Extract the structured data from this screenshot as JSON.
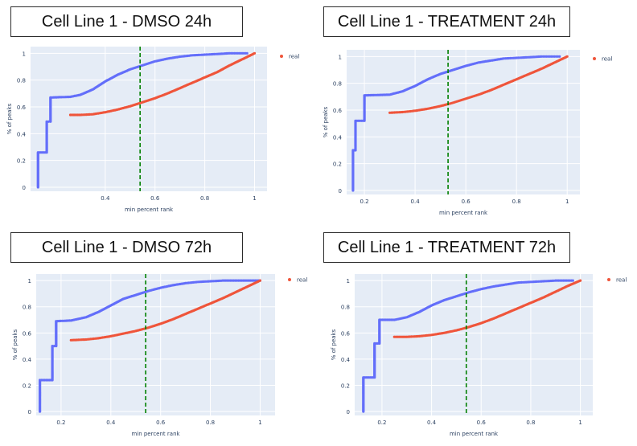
{
  "colors": {
    "background": "#e5ecf6",
    "grid": "#ffffff",
    "series_real": "#ef553b",
    "series_other": "#636efa",
    "vline": "#008000",
    "tick_text": "#2a3f5f"
  },
  "chart_data": [
    {
      "panel_title": "Cell Line 1 - DMSO 24h",
      "type": "scatter",
      "xlabel": "min percent rank",
      "ylabel": "% of peaks",
      "xlim": [
        0.1,
        1.05
      ],
      "ylim": [
        -0.03,
        1.05
      ],
      "xticks": [
        0.4,
        0.6,
        0.8,
        1
      ],
      "xtick_labels": [
        "0.4",
        "0.6",
        "0.8",
        "1"
      ],
      "yticks": [
        0,
        0.2,
        0.4,
        0.6,
        0.8,
        1
      ],
      "ytick_labels": [
        "0",
        "0.2",
        "0.4",
        "0.6",
        "0.8",
        "1"
      ],
      "grid": true,
      "legend_position": "top-right",
      "vline_x": 0.54,
      "series": [
        {
          "name": "real",
          "color": "#ef553b",
          "x": [
            0.26,
            0.3,
            0.35,
            0.4,
            0.45,
            0.5,
            0.55,
            0.6,
            0.65,
            0.7,
            0.75,
            0.8,
            0.85,
            0.9,
            0.95,
            1.0
          ],
          "y": [
            0.54,
            0.54,
            0.545,
            0.56,
            0.58,
            0.605,
            0.635,
            0.665,
            0.7,
            0.74,
            0.78,
            0.82,
            0.86,
            0.91,
            0.955,
            1.0
          ]
        },
        {
          "name": "",
          "color": "#636efa",
          "x": [
            0.13,
            0.13,
            0.165,
            0.165,
            0.18,
            0.18,
            0.26,
            0.3,
            0.35,
            0.4,
            0.45,
            0.5,
            0.55,
            0.6,
            0.65,
            0.7,
            0.75,
            0.8,
            0.85,
            0.9,
            0.95,
            0.97
          ],
          "y": [
            0.0,
            0.26,
            0.26,
            0.49,
            0.49,
            0.67,
            0.675,
            0.69,
            0.73,
            0.79,
            0.84,
            0.88,
            0.91,
            0.94,
            0.96,
            0.975,
            0.985,
            0.99,
            0.995,
            1.0,
            1.0,
            1.0
          ]
        }
      ]
    },
    {
      "panel_title": "Cell Line 1 - TREATMENT 24h",
      "type": "scatter",
      "xlabel": "min percent rank",
      "ylabel": "% of peaks",
      "xlim": [
        0.13,
        1.05
      ],
      "ylim": [
        -0.03,
        1.05
      ],
      "xticks": [
        0.2,
        0.4,
        0.6,
        0.8,
        1
      ],
      "xtick_labels": [
        "0.2",
        "0.4",
        "0.6",
        "0.8",
        "1"
      ],
      "yticks": [
        0,
        0.2,
        0.4,
        0.6,
        0.8,
        1
      ],
      "ytick_labels": [
        "0",
        "0.2",
        "0.4",
        "0.6",
        "0.8",
        "1"
      ],
      "grid": true,
      "legend_position": "top-right",
      "vline_x": 0.53,
      "series": [
        {
          "name": "real",
          "color": "#ef553b",
          "x": [
            0.3,
            0.35,
            0.4,
            0.45,
            0.5,
            0.55,
            0.6,
            0.65,
            0.7,
            0.75,
            0.8,
            0.85,
            0.9,
            0.95,
            1.0
          ],
          "y": [
            0.58,
            0.585,
            0.595,
            0.61,
            0.63,
            0.655,
            0.685,
            0.715,
            0.75,
            0.79,
            0.83,
            0.87,
            0.91,
            0.955,
            1.0
          ]
        },
        {
          "name": "",
          "color": "#636efa",
          "x": [
            0.155,
            0.155,
            0.165,
            0.165,
            0.2,
            0.2,
            0.3,
            0.35,
            0.4,
            0.45,
            0.5,
            0.55,
            0.6,
            0.65,
            0.7,
            0.75,
            0.8,
            0.85,
            0.9,
            0.95,
            0.97
          ],
          "y": [
            0.0,
            0.3,
            0.3,
            0.52,
            0.52,
            0.71,
            0.715,
            0.74,
            0.78,
            0.83,
            0.87,
            0.9,
            0.93,
            0.955,
            0.97,
            0.985,
            0.99,
            0.995,
            1.0,
            1.0,
            1.0
          ]
        }
      ]
    },
    {
      "panel_title": "Cell Line 1 - DMSO 72h",
      "type": "scatter",
      "xlabel": "min percent rank",
      "ylabel": "% of peaks",
      "xlim": [
        0.1,
        1.06
      ],
      "ylim": [
        -0.03,
        1.05
      ],
      "xticks": [
        0.2,
        0.4,
        0.6,
        0.8,
        1
      ],
      "xtick_labels": [
        "0.2",
        "0.4",
        "0.6",
        "0.8",
        "1"
      ],
      "yticks": [
        0,
        0.2,
        0.4,
        0.6,
        0.8,
        1
      ],
      "ytick_labels": [
        "0",
        "0.2",
        "0.4",
        "0.6",
        "0.8",
        "1"
      ],
      "grid": true,
      "legend_position": "top-right",
      "vline_x": 0.54,
      "series": [
        {
          "name": "real",
          "color": "#ef553b",
          "x": [
            0.24,
            0.3,
            0.35,
            0.4,
            0.45,
            0.5,
            0.55,
            0.6,
            0.65,
            0.7,
            0.75,
            0.8,
            0.85,
            0.9,
            0.95,
            1.0
          ],
          "y": [
            0.545,
            0.55,
            0.56,
            0.575,
            0.595,
            0.615,
            0.64,
            0.67,
            0.705,
            0.745,
            0.785,
            0.825,
            0.865,
            0.91,
            0.955,
            1.0
          ]
        },
        {
          "name": "",
          "color": "#636efa",
          "x": [
            0.115,
            0.115,
            0.165,
            0.165,
            0.18,
            0.18,
            0.24,
            0.3,
            0.35,
            0.4,
            0.45,
            0.5,
            0.55,
            0.6,
            0.65,
            0.7,
            0.75,
            0.8,
            0.85,
            0.9,
            0.95,
            1.0
          ],
          "y": [
            0.0,
            0.24,
            0.24,
            0.5,
            0.5,
            0.69,
            0.695,
            0.72,
            0.76,
            0.81,
            0.86,
            0.89,
            0.92,
            0.945,
            0.965,
            0.98,
            0.99,
            0.995,
            1.0,
            1.0,
            1.0,
            1.0
          ]
        }
      ]
    },
    {
      "panel_title": "Cell Line 1 - TREATMENT 72h",
      "type": "scatter",
      "xlabel": "min percent rank",
      "ylabel": "% of peaks",
      "xlim": [
        0.09,
        1.05
      ],
      "ylim": [
        -0.03,
        1.05
      ],
      "xticks": [
        0.2,
        0.4,
        0.6,
        0.8,
        1
      ],
      "xtick_labels": [
        "0.2",
        "0.4",
        "0.6",
        "0.8",
        "1"
      ],
      "yticks": [
        0,
        0.2,
        0.4,
        0.6,
        0.8,
        1
      ],
      "ytick_labels": [
        "0",
        "0.2",
        "0.4",
        "0.6",
        "0.8",
        "1"
      ],
      "grid": true,
      "legend_position": "top-right",
      "vline_x": 0.54,
      "series": [
        {
          "name": "real",
          "color": "#ef553b",
          "x": [
            0.25,
            0.3,
            0.35,
            0.4,
            0.45,
            0.5,
            0.55,
            0.6,
            0.65,
            0.7,
            0.75,
            0.8,
            0.85,
            0.9,
            0.95,
            1.0
          ],
          "y": [
            0.57,
            0.57,
            0.575,
            0.585,
            0.6,
            0.62,
            0.645,
            0.675,
            0.71,
            0.75,
            0.79,
            0.83,
            0.87,
            0.915,
            0.96,
            1.0
          ]
        },
        {
          "name": "",
          "color": "#636efa",
          "x": [
            0.125,
            0.125,
            0.17,
            0.17,
            0.19,
            0.19,
            0.25,
            0.3,
            0.35,
            0.4,
            0.45,
            0.5,
            0.55,
            0.6,
            0.65,
            0.7,
            0.75,
            0.8,
            0.85,
            0.9,
            0.95,
            0.97
          ],
          "y": [
            0.0,
            0.26,
            0.26,
            0.52,
            0.52,
            0.7,
            0.7,
            0.72,
            0.76,
            0.81,
            0.85,
            0.88,
            0.91,
            0.935,
            0.955,
            0.97,
            0.985,
            0.99,
            0.995,
            1.0,
            1.0,
            1.0
          ]
        }
      ]
    }
  ]
}
